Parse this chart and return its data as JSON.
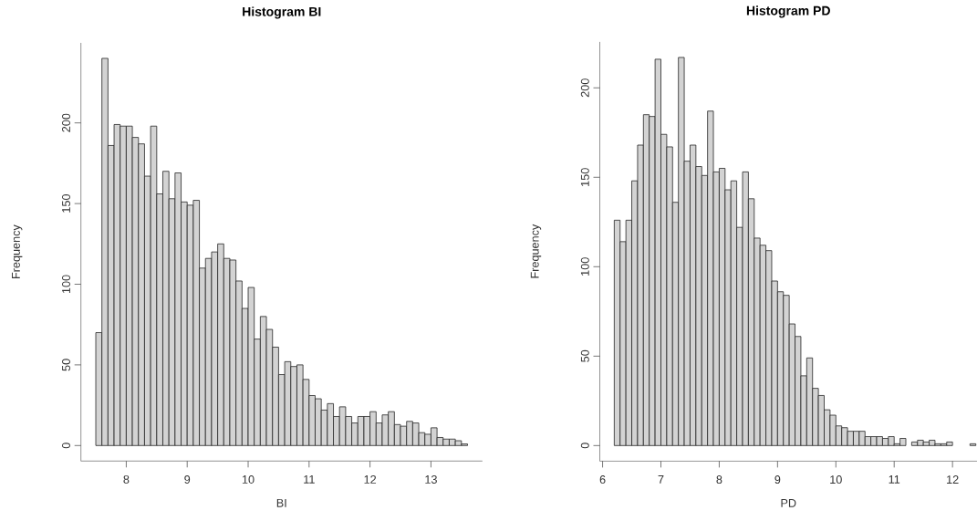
{
  "chart_data": [
    {
      "type": "histogram",
      "title": "Histogram BI",
      "xlabel": "BI",
      "ylabel": "Frequency",
      "color": "#d3d3d3",
      "bins": [
        7.5,
        7.6,
        7.7,
        7.8,
        7.9,
        8.0,
        8.1,
        8.2,
        8.3,
        8.4,
        8.5,
        8.6,
        8.7,
        8.8,
        8.9,
        9.0,
        9.1,
        9.2,
        9.3,
        9.4,
        9.5,
        9.6,
        9.7,
        9.8,
        9.9,
        10.0,
        10.1,
        10.2,
        10.3,
        10.4,
        10.5,
        10.6,
        10.7,
        10.8,
        10.9,
        11.0,
        11.1,
        11.2,
        11.3,
        11.4,
        11.5,
        11.6,
        11.7,
        11.8,
        11.9,
        12.0,
        12.1,
        12.2,
        12.3,
        12.4,
        12.5,
        12.6,
        12.7,
        12.8,
        12.9,
        13.0,
        13.1,
        13.2,
        13.3,
        13.4,
        13.5,
        13.6
      ],
      "values": [
        70,
        240,
        186,
        199,
        198,
        198,
        191,
        187,
        167,
        198,
        156,
        170,
        153,
        169,
        151,
        149,
        152,
        110,
        116,
        120,
        125,
        116,
        115,
        102,
        85,
        98,
        66,
        80,
        72,
        61,
        44,
        52,
        49,
        50,
        41,
        31,
        29,
        22,
        26,
        18,
        24,
        18,
        14,
        18,
        18,
        21,
        14,
        19,
        21,
        13,
        12,
        15,
        14,
        8,
        7,
        11,
        5,
        4,
        4,
        3,
        1
      ],
      "xlim": [
        7.256,
        13.844
      ],
      "ylim": [
        -9.6,
        249.6
      ],
      "xticks": [
        8,
        9,
        10,
        11,
        12,
        13
      ],
      "yticks": [
        0,
        50,
        100,
        150,
        200
      ]
    },
    {
      "type": "histogram",
      "title": "Histogram PD",
      "xlabel": "PD",
      "ylabel": "Frequency",
      "color": "#d3d3d3",
      "bins": [
        6.2,
        6.3,
        6.4,
        6.5,
        6.6,
        6.7,
        6.8,
        6.9,
        7.0,
        7.1,
        7.2,
        7.3,
        7.4,
        7.5,
        7.6,
        7.7,
        7.8,
        7.9,
        8.0,
        8.1,
        8.2,
        8.3,
        8.4,
        8.5,
        8.6,
        8.7,
        8.8,
        8.9,
        9.0,
        9.1,
        9.2,
        9.3,
        9.4,
        9.5,
        9.6,
        9.7,
        9.8,
        9.9,
        10.0,
        10.1,
        10.2,
        10.3,
        10.4,
        10.5,
        10.6,
        10.7,
        10.8,
        10.9,
        11.0,
        11.1,
        11.2,
        11.3,
        11.4,
        11.5,
        11.6,
        11.7,
        11.8,
        11.9,
        12.0,
        12.1,
        12.2,
        12.3,
        12.4
      ],
      "values": [
        126,
        114,
        126,
        148,
        168,
        185,
        184,
        216,
        174,
        167,
        136,
        217,
        159,
        168,
        156,
        151,
        187,
        153,
        155,
        143,
        148,
        122,
        153,
        138,
        116,
        112,
        109,
        92,
        86,
        84,
        68,
        61,
        39,
        49,
        32,
        28,
        20,
        17,
        11,
        10,
        8,
        8,
        8,
        5,
        5,
        5,
        4,
        5,
        1,
        4,
        0,
        2,
        3,
        2,
        3,
        1,
        1,
        2,
        0,
        0,
        0,
        1
      ],
      "xlim": [
        5.952,
        12.42
      ],
      "ylim": [
        -8.7,
        225.7
      ],
      "xticks": [
        6,
        7,
        8,
        9,
        10,
        11,
        12
      ],
      "yticks": [
        0,
        50,
        100,
        150,
        200
      ]
    }
  ]
}
